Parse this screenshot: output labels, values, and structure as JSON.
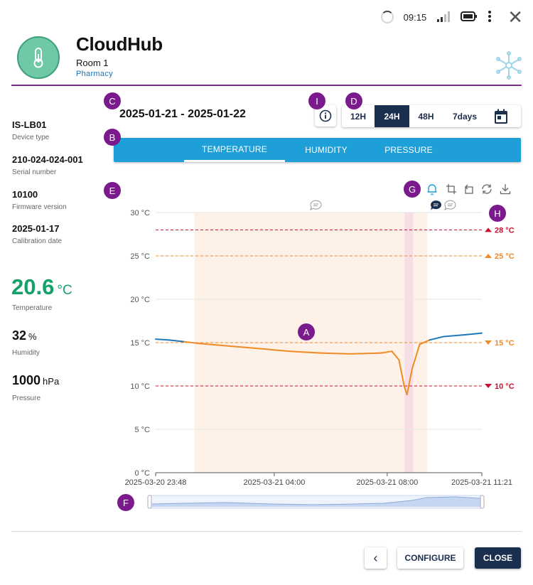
{
  "status_bar": {
    "time": "09:15"
  },
  "header": {
    "title": "CloudHub",
    "room": "Room 1",
    "department": "Pharmacy"
  },
  "device": [
    {
      "value": "IS-LB01",
      "label": "Device type"
    },
    {
      "value": "210-024-024-001",
      "label": "Serial number"
    },
    {
      "value": "10100",
      "label": "Firmware version"
    },
    {
      "value": "2025-01-17",
      "label": "Calibration date"
    }
  ],
  "readings": {
    "temperature": {
      "value": "20.6",
      "unit": "°C",
      "label": "Temperature"
    },
    "humidity": {
      "value": "32",
      "unit": "%",
      "label": "Humidity"
    },
    "pressure": {
      "value": "1000",
      "unit": "hPa",
      "label": "Pressure"
    }
  },
  "badges": {
    "a": "A",
    "b": "B",
    "c": "C",
    "d": "D",
    "e": "E",
    "f": "F",
    "g": "G",
    "h": "H",
    "i": "I"
  },
  "date_range": "2025-01-21 - 2025-01-22",
  "ranges": [
    {
      "label": "12H",
      "active": false
    },
    {
      "label": "24H",
      "active": true
    },
    {
      "label": "48H",
      "active": false
    },
    {
      "label": "7days",
      "active": false
    }
  ],
  "tabs": [
    {
      "label": "TEMPERATURE",
      "active": true
    },
    {
      "label": "HUMIDITY",
      "active": false
    },
    {
      "label": "PRESSURE",
      "active": false
    }
  ],
  "toolbar_icons": [
    "bell-icon",
    "crop-icon",
    "crop-reset-icon",
    "refresh-icon",
    "download-icon"
  ],
  "chart_data": {
    "type": "line",
    "y_unit": "°C",
    "ylim": [
      0,
      30
    ],
    "y_ticks": [
      "30 °C",
      "25 °C",
      "20 °C",
      "15 °C",
      "10 °C",
      "5 °C",
      "0 °C"
    ],
    "x_ticks": [
      "2025-03-20 23:48",
      "2025-03-21 04:00",
      "2025-03-21 08:00",
      "2025-03-21 11:21"
    ],
    "x_range": [
      "2025-03-20 23:48",
      "2025-03-21 11:21"
    ],
    "grid": "horizontal",
    "thresholds": [
      {
        "label": "28 °C",
        "value": 28,
        "color": "#c8102e",
        "direction": "up"
      },
      {
        "label": "25 °C",
        "value": 25,
        "color": "#f08a24",
        "direction": "up"
      },
      {
        "label": "15 °C",
        "value": 15,
        "color": "#f08a24",
        "direction": "down"
      },
      {
        "label": "10 °C",
        "value": 10,
        "color": "#c8102e",
        "direction": "down"
      }
    ],
    "series": [
      {
        "color_in_range": "#1f77b4",
        "color_out_of_range": "#f08a24",
        "points": [
          [
            "2025-03-20 23:48",
            15.4
          ],
          [
            "2025-03-21 00:17",
            15.3
          ],
          [
            "2025-03-21 00:49",
            15.1
          ],
          [
            "2025-03-21 01:21",
            14.9
          ],
          [
            "2025-03-21 02:25",
            14.6
          ],
          [
            "2025-03-21 03:30",
            14.3
          ],
          [
            "2025-03-21 04:34",
            14.0
          ],
          [
            "2025-03-21 05:38",
            13.8
          ],
          [
            "2025-03-21 06:42",
            13.7
          ],
          [
            "2025-03-21 07:47",
            13.8
          ],
          [
            "2025-03-21 08:10",
            14.0
          ],
          [
            "2025-03-21 08:25",
            13.0
          ],
          [
            "2025-03-21 08:36",
            10.0
          ],
          [
            "2025-03-21 08:42",
            9.0
          ],
          [
            "2025-03-21 08:53",
            12.0
          ],
          [
            "2025-03-21 09:09",
            14.8
          ],
          [
            "2025-03-21 09:30",
            15.3
          ],
          [
            "2025-03-21 10:00",
            15.7
          ],
          [
            "2025-03-21 10:45",
            15.9
          ],
          [
            "2025-03-21 11:21",
            16.1
          ]
        ]
      }
    ],
    "shaded_period": [
      "2025-03-21 01:10",
      "2025-03-21 09:25"
    ],
    "alarm_period": [
      "2025-03-21 08:37",
      "2025-03-21 08:55"
    ]
  }
}
